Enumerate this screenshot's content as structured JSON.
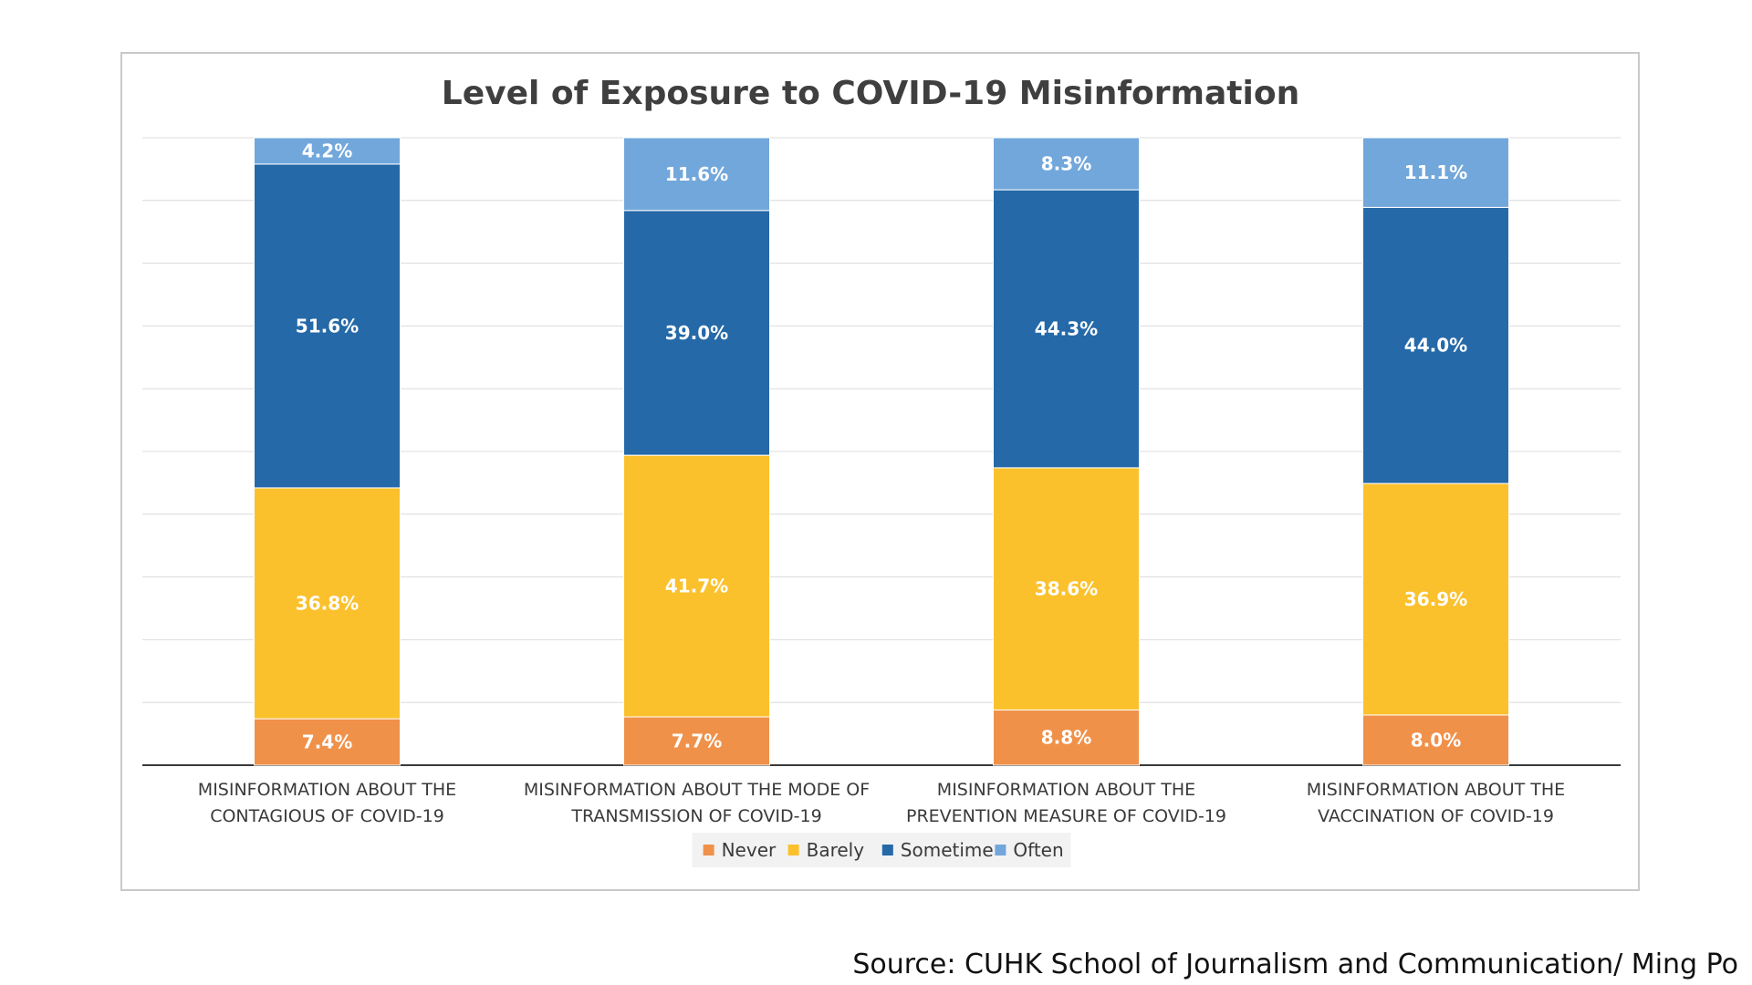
{
  "chart_data": {
    "type": "bar",
    "stacked": true,
    "title": "Level of Exposure to COVID-19 Misinformation",
    "categories": [
      [
        "MISINFORMATION ABOUT THE",
        "CONTAGIOUS OF COVID-19"
      ],
      [
        "MISINFORMATION ABOUT THE MODE OF",
        "TRANSMISSION OF COVID-19"
      ],
      [
        "MISINFORMATION ABOUT THE",
        "PREVENTION MEASURE OF COVID-19"
      ],
      [
        "MISINFORMATION ABOUT THE",
        "VACCINATION OF COVID-19"
      ]
    ],
    "series": [
      {
        "name": "Never",
        "color": "#f0914a",
        "values": [
          7.4,
          7.7,
          8.8,
          8.0
        ]
      },
      {
        "name": "Barely",
        "color": "#fbc12d",
        "values": [
          36.8,
          41.7,
          38.6,
          36.9
        ]
      },
      {
        "name": "Sometime",
        "color": "#2569a8",
        "values": [
          51.6,
          39.0,
          44.3,
          44.0
        ]
      },
      {
        "name": "Often",
        "color": "#72a7db",
        "values": [
          4.2,
          11.6,
          8.3,
          11.1
        ]
      }
    ],
    "value_format": "%",
    "ylim": [
      0,
      100
    ],
    "grid": true,
    "legend": "bottom-center"
  },
  "source": "Source: CUHK School of Journalism and Communication/ Ming Po"
}
